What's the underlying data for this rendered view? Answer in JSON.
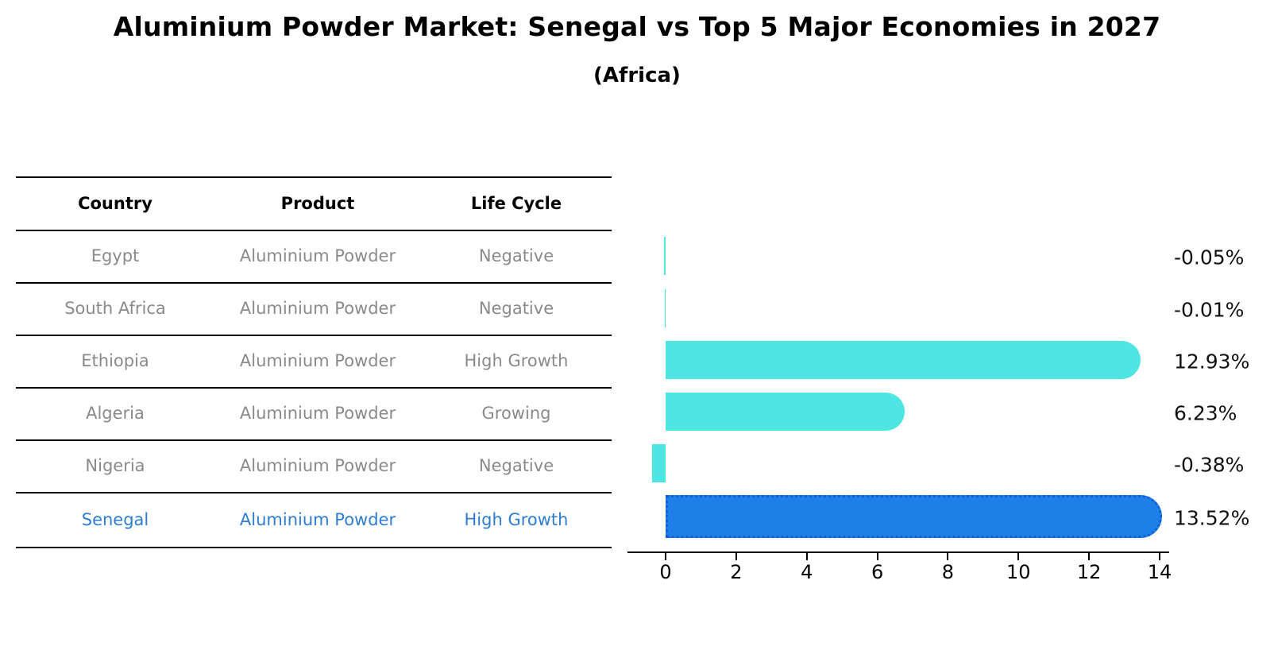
{
  "title": "Aluminium Powder Market: Senegal vs Top 5 Major Economies in 2027",
  "subtitle": "(Africa)",
  "table": {
    "headers": [
      "Country",
      "Product",
      "Life Cycle"
    ],
    "rows": [
      {
        "country": "Egypt",
        "product": "Aluminium Powder",
        "life_cycle": "Negative",
        "highlight": false
      },
      {
        "country": "South Africa",
        "product": "Aluminium Powder",
        "life_cycle": "Negative",
        "highlight": false
      },
      {
        "country": "Ethiopia",
        "product": "Aluminium Powder",
        "life_cycle": "High Growth",
        "highlight": false
      },
      {
        "country": "Algeria",
        "product": "Aluminium Powder",
        "life_cycle": "Growing",
        "highlight": false
      },
      {
        "country": "Nigeria",
        "product": "Aluminium Powder",
        "life_cycle": "Negative",
        "highlight": false
      },
      {
        "country": "Senegal",
        "product": "Aluminium Powder",
        "life_cycle": "High Growth",
        "highlight": true
      }
    ]
  },
  "chart_data": {
    "type": "bar",
    "orientation": "horizontal",
    "title": "Aluminium Powder Market: Senegal vs Top 5 Major Economies in 2027 (Africa)",
    "categories": [
      "Egypt",
      "South Africa",
      "Ethiopia",
      "Algeria",
      "Nigeria",
      "Senegal"
    ],
    "values": [
      -0.05,
      -0.01,
      12.93,
      6.23,
      -0.38,
      13.52
    ],
    "value_labels": [
      "-0.05%",
      "-0.01%",
      "12.93%",
      "6.23%",
      "-0.38%",
      "13.52%"
    ],
    "unit": "percent",
    "highlight_category": "Senegal",
    "highlight_index": 5,
    "xticks": [
      0,
      2,
      4,
      6,
      8,
      10,
      12,
      14
    ],
    "xlim": [
      -1.1,
      14.25
    ],
    "grid": false,
    "legend": false
  },
  "colors": {
    "bar_default": "#4DE6E2",
    "bar_highlight": "#1F7FE8",
    "bar_highlight_border": "#0F5FD7",
    "highlight_text": "#2E7DD2",
    "row_text": "#8A8A8A",
    "header_text": "#000000",
    "axis_text": "#000000",
    "value_label_text": "#111111"
  }
}
